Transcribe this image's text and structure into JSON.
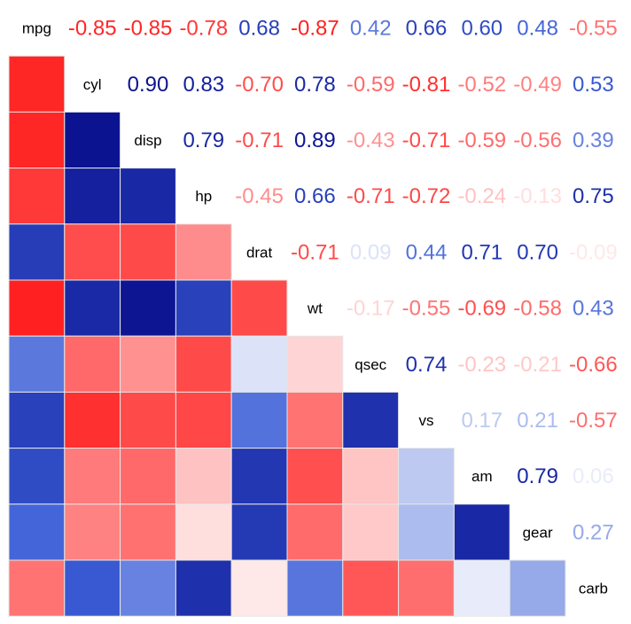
{
  "chart_data": {
    "type": "heatmap",
    "title": "",
    "variables": [
      "mpg",
      "cyl",
      "disp",
      "hp",
      "drat",
      "wt",
      "qsec",
      "vs",
      "am",
      "gear",
      "carb"
    ],
    "matrix": [
      [
        1.0,
        -0.85,
        -0.85,
        -0.78,
        0.68,
        -0.87,
        0.42,
        0.66,
        0.6,
        0.48,
        -0.55
      ],
      [
        -0.85,
        1.0,
        0.9,
        0.83,
        -0.7,
        0.78,
        -0.59,
        -0.81,
        -0.52,
        -0.49,
        0.53
      ],
      [
        -0.85,
        0.9,
        1.0,
        0.79,
        -0.71,
        0.89,
        -0.43,
        -0.71,
        -0.59,
        -0.56,
        0.39
      ],
      [
        -0.78,
        0.83,
        0.79,
        1.0,
        -0.45,
        0.66,
        -0.71,
        -0.72,
        -0.24,
        -0.13,
        0.75
      ],
      [
        0.68,
        -0.7,
        -0.71,
        -0.45,
        1.0,
        -0.71,
        0.09,
        0.44,
        0.71,
        0.7,
        -0.09
      ],
      [
        -0.87,
        0.78,
        0.89,
        0.66,
        -0.71,
        1.0,
        -0.17,
        -0.55,
        -0.69,
        -0.58,
        0.43
      ],
      [
        0.42,
        -0.59,
        -0.43,
        -0.71,
        0.09,
        -0.17,
        1.0,
        0.74,
        -0.23,
        -0.21,
        -0.66
      ],
      [
        0.66,
        -0.81,
        -0.71,
        -0.72,
        0.44,
        -0.55,
        0.74,
        1.0,
        0.17,
        0.21,
        -0.57
      ],
      [
        0.6,
        -0.52,
        -0.59,
        -0.24,
        0.71,
        -0.69,
        -0.23,
        0.17,
        1.0,
        0.79,
        0.06
      ],
      [
        0.48,
        -0.49,
        -0.56,
        -0.13,
        0.7,
        -0.58,
        -0.21,
        0.21,
        0.79,
        1.0,
        0.27
      ],
      [
        -0.55,
        0.53,
        0.39,
        0.75,
        -0.09,
        0.43,
        -0.66,
        -0.57,
        0.06,
        0.27,
        1.0
      ]
    ],
    "lower_triangle": "colored tiles",
    "upper_triangle": "coefficient labels",
    "diagonal": "variable names",
    "color_scale": {
      "negative": "#ff0000",
      "zero": "#ffffff",
      "positive": "#00007f",
      "mid_positive": "#3c5fd7"
    },
    "legend": "none",
    "grid": false
  }
}
